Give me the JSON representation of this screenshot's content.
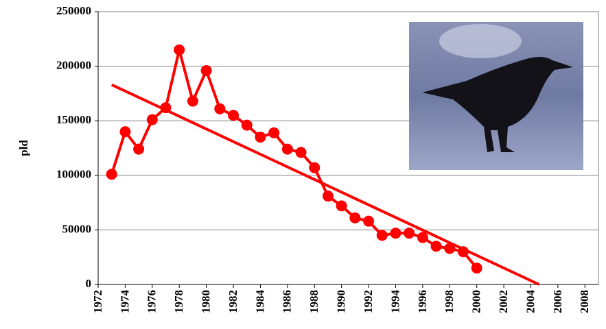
{
  "chart_data": {
    "type": "line",
    "y_label": "pld",
    "series": [
      {
        "name": "pld",
        "color": "#ff0000",
        "markers": true,
        "x": [
          1973,
          1974,
          1975,
          1976,
          1977,
          1978,
          1979,
          1980,
          1981,
          1982,
          1983,
          1984,
          1985,
          1986,
          1987,
          1988,
          1989,
          1990,
          1991,
          1992,
          1993,
          1994,
          1995,
          1996,
          1997,
          1998,
          1999,
          2000
        ],
        "values": [
          101000,
          140000,
          124000,
          151000,
          162000,
          215000,
          168000,
          196000,
          161000,
          155000,
          146000,
          135000,
          139000,
          124000,
          121000,
          107000,
          81000,
          72000,
          61000,
          58000,
          45000,
          47000,
          47000,
          43000,
          35000,
          33000,
          30000,
          15000
        ]
      },
      {
        "name": "trend",
        "color": "#ff0000",
        "markers": false,
        "x": [
          1973,
          2004.6
        ],
        "values": [
          183000,
          0
        ]
      }
    ],
    "xlim": [
      1972,
      2009
    ],
    "xticks": [
      1972,
      1974,
      1976,
      1978,
      1980,
      1982,
      1984,
      1986,
      1988,
      1990,
      1992,
      1994,
      1996,
      1998,
      2000,
      2002,
      2004,
      2006,
      2008
    ],
    "ylim": [
      0,
      250000
    ],
    "yticks": [
      0,
      50000,
      100000,
      150000,
      200000,
      250000
    ],
    "grid": true
  }
}
